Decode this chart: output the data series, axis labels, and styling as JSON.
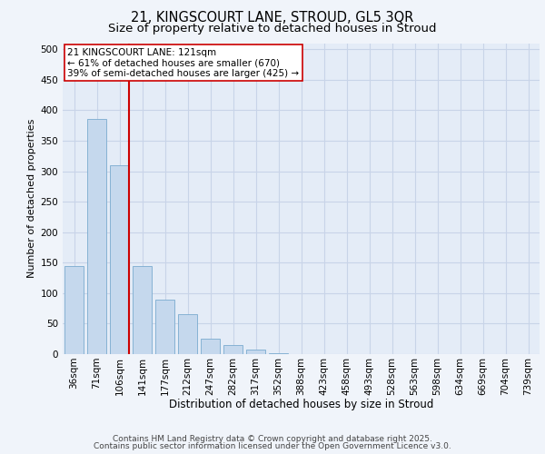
{
  "title1": "21, KINGSCOURT LANE, STROUD, GL5 3QR",
  "title2": "Size of property relative to detached houses in Stroud",
  "xlabel": "Distribution of detached houses by size in Stroud",
  "ylabel": "Number of detached properties",
  "categories": [
    "36sqm",
    "71sqm",
    "106sqm",
    "141sqm",
    "177sqm",
    "212sqm",
    "247sqm",
    "282sqm",
    "317sqm",
    "352sqm",
    "388sqm",
    "423sqm",
    "458sqm",
    "493sqm",
    "528sqm",
    "563sqm",
    "598sqm",
    "634sqm",
    "669sqm",
    "704sqm",
    "739sqm"
  ],
  "values": [
    145,
    385,
    310,
    145,
    90,
    65,
    25,
    15,
    8,
    2,
    0,
    0,
    0,
    0,
    0,
    0,
    0,
    0,
    0,
    0,
    0
  ],
  "bar_color": "#c5d8ed",
  "bar_edgecolor": "#7aabcf",
  "grid_color": "#c8d4e8",
  "bg_color": "#e4ecf7",
  "fig_bg_color": "#f0f4fa",
  "property_line_color": "#cc0000",
  "annotation_text": "21 KINGSCOURT LANE: 121sqm\n← 61% of detached houses are smaller (670)\n39% of semi-detached houses are larger (425) →",
  "annotation_box_color": "#cc0000",
  "footnote_line1": "Contains HM Land Registry data © Crown copyright and database right 2025.",
  "footnote_line2": "Contains public sector information licensed under the Open Government Licence v3.0.",
  "ylim": [
    0,
    510
  ],
  "yticks": [
    0,
    50,
    100,
    150,
    200,
    250,
    300,
    350,
    400,
    450,
    500
  ],
  "title1_fontsize": 10.5,
  "title2_fontsize": 9.5,
  "xlabel_fontsize": 8.5,
  "ylabel_fontsize": 8,
  "tick_fontsize": 7.5,
  "annotation_fontsize": 7.5,
  "footnote_fontsize": 6.5
}
